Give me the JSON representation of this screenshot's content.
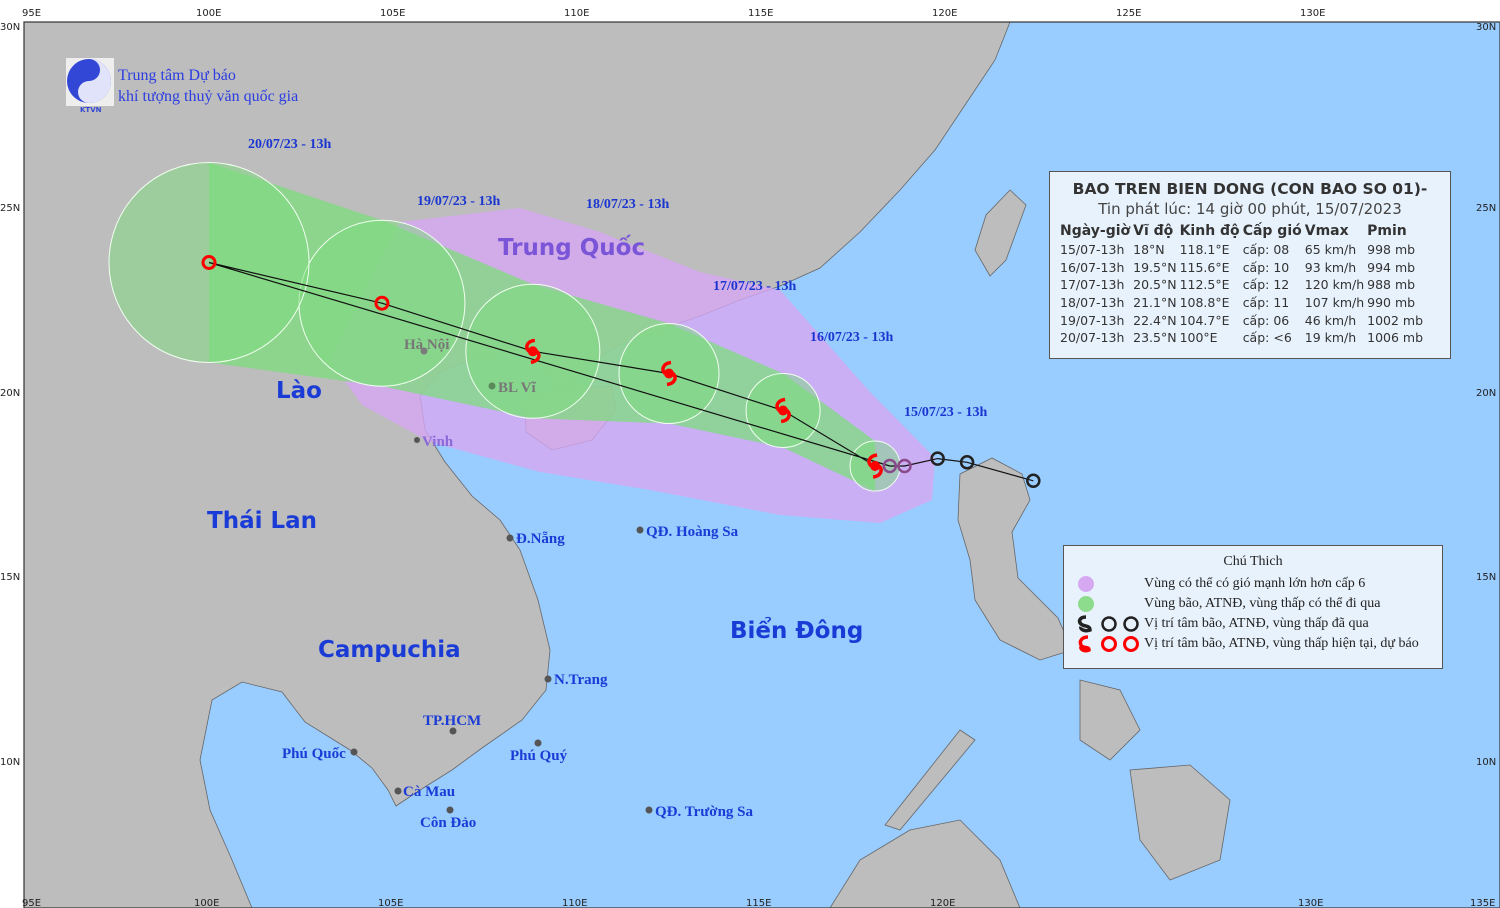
{
  "logo": {
    "line1": "Trung tâm Dự báo",
    "line2": "khí tượng thuỷ văn quốc gia",
    "badge": "KTVN"
  },
  "axes": {
    "lon_labels": [
      "95E",
      "100E",
      "105E",
      "110E",
      "115E",
      "120E",
      "125E",
      "130E",
      "135E"
    ],
    "lat_labels": [
      "30N",
      "25N",
      "20N",
      "15N",
      "10N"
    ]
  },
  "countries": {
    "china": "Trung Quốc",
    "laos": "Lào",
    "thailand": "Thái Lan",
    "cambodia": "Campuchia",
    "sea": "Biển Đông"
  },
  "cities": {
    "hanoi": "Hà Nội",
    "blvi": "BL Vĩ",
    "vinh": "Vinh",
    "danang": "Đ.Nẵng",
    "hoangsa": "QĐ. Hoàng Sa",
    "nhatrang": "N.Trang",
    "hcm": "TP.HCM",
    "phuquoc": "Phú Quốc",
    "phuquy": "Phú Quý",
    "camau": "Cà Mau",
    "condao": "Côn Đảo",
    "truongsa": "QĐ. Trường Sa"
  },
  "forecast_labels": [
    "15/07/23 - 13h",
    "16/07/23 - 13h",
    "17/07/23 - 13h",
    "18/07/23 - 13h",
    "19/07/23 - 13h",
    "20/07/23 - 13h"
  ],
  "info": {
    "title": "BAO TREN BIEN DONG (CON BAO SO 01)-",
    "issued": "Tin phát lúc: 14 giờ 00 phút, 15/07/2023",
    "headers": [
      "Ngày-giờ",
      "Vĩ độ",
      "Kinh độ",
      "Cấp gió",
      "Vmax",
      "Pmin"
    ],
    "rows": [
      [
        "15/07-13h",
        "18°N",
        "118.1°E",
        "cấp: 08",
        "65 km/h",
        "998 mb"
      ],
      [
        "16/07-13h",
        "19.5°N",
        "115.6°E",
        "cấp: 10",
        "93 km/h",
        "994 mb"
      ],
      [
        "17/07-13h",
        "20.5°N",
        "112.5°E",
        "cấp: 12",
        "120 km/h",
        "988 mb"
      ],
      [
        "18/07-13h",
        "21.1°N",
        "108.8°E",
        "cấp: 11",
        "107 km/h",
        "990 mb"
      ],
      [
        "19/07-13h",
        "22.4°N",
        "104.7°E",
        "cấp: 06",
        "46 km/h",
        "1002 mb"
      ],
      [
        "20/07-13h",
        "23.5°N",
        "100°E",
        "cấp: <6",
        "19 km/h",
        "1006 mb"
      ]
    ]
  },
  "track": {
    "forecast": [
      [
        118.1,
        18
      ],
      [
        115.6,
        19.5
      ],
      [
        112.5,
        20.5
      ],
      [
        108.8,
        21.1
      ],
      [
        104.7,
        22.4
      ],
      [
        100,
        23.5
      ]
    ],
    "past": [
      [
        118.5,
        18
      ],
      [
        118.9,
        18
      ],
      [
        119.8,
        18.2
      ],
      [
        120.6,
        18.1
      ],
      [
        122.4,
        17.6
      ]
    ]
  },
  "legend": {
    "title": "Chú Thich",
    "items": [
      "Vùng có thể có gió mạnh lớn hơn cấp 6",
      "Vùng bão, ATNĐ, vùng thấp có thể đi qua",
      "Vị trí tâm bão, ATNĐ, vùng thấp đã qua",
      "Vị trí tâm bão, ATNĐ, vùng thấp hiện tại, dự báo"
    ]
  },
  "colors": {
    "sea": "#99ccff",
    "land": "#bdbdbd",
    "wind_zone": "#d6a8f2",
    "track_zone": "#7ddc7d",
    "current": "#ff0000",
    "past": "#222222",
    "label": "#1b3bd6"
  }
}
